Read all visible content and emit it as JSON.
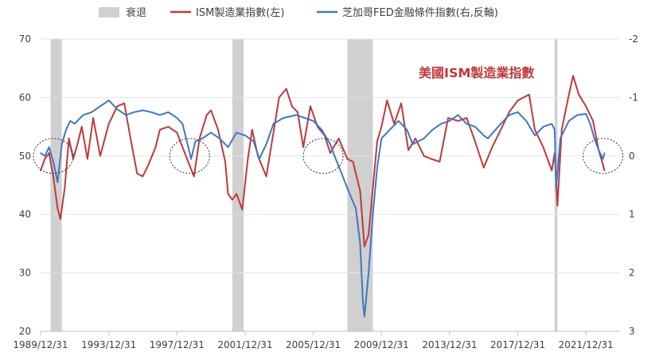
{
  "chart_data": {
    "type": "line",
    "legend": {
      "placement": "top",
      "recession": "衰退",
      "ism": "ISM製造業指數(左)",
      "fed": "芝加哥FED金融條件指數(右,反軸)"
    },
    "annotation": "美國ISM製造業指數",
    "colors": {
      "ism": "#c0393b",
      "fed": "#3f78c2",
      "recession": "#d0d0d0",
      "text": "#404040",
      "annotation": "#c0393b"
    },
    "x_range": [
      "1989-12-31",
      "2023-12-31"
    ],
    "x_ticks": [
      "1989/12/31",
      "1993/12/31",
      "1997/12/31",
      "2001/12/31",
      "2005/12/31",
      "2009/12/31",
      "2013/12/31",
      "2017/12/31",
      "2021/12/31"
    ],
    "y_left": {
      "range": [
        20,
        70
      ],
      "ticks": [
        20,
        30,
        40,
        50,
        60,
        70
      ]
    },
    "y_right": {
      "range": [
        -2,
        3
      ],
      "inverted": true,
      "ticks": [
        -2,
        -1,
        0,
        1,
        2,
        3
      ]
    },
    "recessions": [
      {
        "start": "1990-07-31",
        "end": "1991-03-31"
      },
      {
        "start": "2001-03-31",
        "end": "2001-11-30"
      },
      {
        "start": "2007-12-31",
        "end": "2009-06-30"
      },
      {
        "start": "2020-02-29",
        "end": "2020-04-30"
      }
    ],
    "highlight_circles": [
      {
        "date": "1990-09-30",
        "value": 50
      },
      {
        "date": "1998-09-30",
        "value": 50
      },
      {
        "date": "2006-07-31",
        "value": 50
      },
      {
        "date": "2022-12-31",
        "value": 50
      }
    ],
    "series": [
      {
        "name": "ISM製造業指數(左)",
        "axis": "left",
        "points": [
          [
            "1989-12-31",
            47.5
          ],
          [
            "1990-03-31",
            49.5
          ],
          [
            "1990-06-30",
            50.5
          ],
          [
            "1990-09-30",
            46.5
          ],
          [
            "1990-12-31",
            41.0
          ],
          [
            "1991-02-28",
            39.2
          ],
          [
            "1991-05-31",
            44.5
          ],
          [
            "1991-08-31",
            53.0
          ],
          [
            "1991-11-30",
            49.5
          ],
          [
            "1992-02-29",
            52.0
          ],
          [
            "1992-05-31",
            55.0
          ],
          [
            "1992-09-30",
            49.5
          ],
          [
            "1993-01-31",
            56.5
          ],
          [
            "1993-06-30",
            50.0
          ],
          [
            "1993-12-31",
            55.5
          ],
          [
            "1994-06-30",
            58.5
          ],
          [
            "1994-11-30",
            59.0
          ],
          [
            "1995-03-31",
            53.5
          ],
          [
            "1995-08-31",
            47.0
          ],
          [
            "1995-12-31",
            46.5
          ],
          [
            "1996-04-30",
            48.5
          ],
          [
            "1996-09-30",
            51.5
          ],
          [
            "1996-12-31",
            54.5
          ],
          [
            "1997-06-30",
            55.0
          ],
          [
            "1997-12-31",
            54.0
          ],
          [
            "1998-04-30",
            51.5
          ],
          [
            "1998-08-31",
            49.0
          ],
          [
            "1998-12-31",
            46.5
          ],
          [
            "1999-04-30",
            53.0
          ],
          [
            "1999-09-30",
            57.0
          ],
          [
            "1999-12-31",
            57.8
          ],
          [
            "2000-05-31",
            54.5
          ],
          [
            "2000-10-31",
            49.0
          ],
          [
            "2000-12-31",
            43.5
          ],
          [
            "2001-03-31",
            42.5
          ],
          [
            "2001-06-30",
            43.5
          ],
          [
            "2001-10-31",
            40.8
          ],
          [
            "2002-02-28",
            49.5
          ],
          [
            "2002-05-31",
            54.5
          ],
          [
            "2002-09-30",
            50.0
          ],
          [
            "2003-03-31",
            46.5
          ],
          [
            "2003-08-31",
            54.0
          ],
          [
            "2003-12-31",
            60.0
          ],
          [
            "2004-05-31",
            61.5
          ],
          [
            "2004-09-30",
            58.5
          ],
          [
            "2005-01-31",
            57.5
          ],
          [
            "2005-05-31",
            51.5
          ],
          [
            "2005-10-31",
            58.5
          ],
          [
            "2006-03-31",
            55.0
          ],
          [
            "2006-08-31",
            53.5
          ],
          [
            "2006-12-31",
            50.5
          ],
          [
            "2007-06-30",
            53.0
          ],
          [
            "2007-12-31",
            49.5
          ],
          [
            "2008-04-30",
            49.0
          ],
          [
            "2008-09-30",
            44.0
          ],
          [
            "2008-12-31",
            34.5
          ],
          [
            "2009-03-31",
            36.5
          ],
          [
            "2009-06-30",
            44.5
          ],
          [
            "2009-09-30",
            52.5
          ],
          [
            "2009-12-31",
            55.0
          ],
          [
            "2010-04-30",
            59.5
          ],
          [
            "2010-09-30",
            55.5
          ],
          [
            "2011-02-28",
            59.0
          ],
          [
            "2011-07-31",
            51.0
          ],
          [
            "2011-12-31",
            53.0
          ],
          [
            "2012-06-30",
            50.0
          ],
          [
            "2012-11-30",
            49.5
          ],
          [
            "2013-05-31",
            49.0
          ],
          [
            "2013-11-30",
            56.5
          ],
          [
            "2014-06-30",
            56.0
          ],
          [
            "2014-12-31",
            56.5
          ],
          [
            "2015-06-30",
            52.5
          ],
          [
            "2015-12-31",
            48.0
          ],
          [
            "2016-06-30",
            51.5
          ],
          [
            "2016-12-31",
            54.5
          ],
          [
            "2017-06-30",
            57.5
          ],
          [
            "2017-12-31",
            59.5
          ],
          [
            "2018-08-31",
            60.5
          ],
          [
            "2018-12-31",
            54.5
          ],
          [
            "2019-06-30",
            51.5
          ],
          [
            "2019-12-31",
            47.5
          ],
          [
            "2020-02-29",
            50.5
          ],
          [
            "2020-04-30",
            41.5
          ],
          [
            "2020-07-31",
            54.5
          ],
          [
            "2020-12-31",
            60.5
          ],
          [
            "2021-03-31",
            63.7
          ],
          [
            "2021-07-31",
            60.5
          ],
          [
            "2021-12-31",
            58.5
          ],
          [
            "2022-05-31",
            56.0
          ],
          [
            "2022-09-30",
            51.0
          ],
          [
            "2022-12-31",
            48.5
          ],
          [
            "2023-01-31",
            47.5
          ]
        ]
      },
      {
        "name": "芝加哥FED金融條件指數(右,反軸)",
        "axis": "right",
        "points": [
          [
            "1989-12-31",
            -0.05
          ],
          [
            "1990-03-31",
            0.0
          ],
          [
            "1990-06-30",
            -0.15
          ],
          [
            "1990-09-30",
            0.1
          ],
          [
            "1990-12-31",
            0.45
          ],
          [
            "1991-03-31",
            -0.2
          ],
          [
            "1991-06-30",
            -0.45
          ],
          [
            "1991-09-30",
            -0.6
          ],
          [
            "1991-12-31",
            -0.55
          ],
          [
            "1992-06-30",
            -0.7
          ],
          [
            "1992-12-31",
            -0.75
          ],
          [
            "1993-06-30",
            -0.85
          ],
          [
            "1993-12-31",
            -0.95
          ],
          [
            "1994-06-30",
            -0.8
          ],
          [
            "1994-12-31",
            -0.7
          ],
          [
            "1995-06-30",
            -0.75
          ],
          [
            "1995-12-31",
            -0.78
          ],
          [
            "1996-06-30",
            -0.75
          ],
          [
            "1996-12-31",
            -0.7
          ],
          [
            "1997-06-30",
            -0.75
          ],
          [
            "1997-12-31",
            -0.65
          ],
          [
            "1998-04-30",
            -0.55
          ],
          [
            "1998-08-31",
            -0.15
          ],
          [
            "1998-10-31",
            0.05
          ],
          [
            "1999-01-31",
            -0.25
          ],
          [
            "1999-06-30",
            -0.3
          ],
          [
            "1999-12-31",
            -0.4
          ],
          [
            "2000-06-30",
            -0.3
          ],
          [
            "2000-12-31",
            -0.15
          ],
          [
            "2001-06-30",
            -0.4
          ],
          [
            "2001-12-31",
            -0.35
          ],
          [
            "2002-06-30",
            -0.25
          ],
          [
            "2002-10-31",
            0.05
          ],
          [
            "2003-03-31",
            -0.2
          ],
          [
            "2003-08-31",
            -0.55
          ],
          [
            "2004-03-31",
            -0.65
          ],
          [
            "2004-12-31",
            -0.7
          ],
          [
            "2005-06-30",
            -0.65
          ],
          [
            "2005-12-31",
            -0.6
          ],
          [
            "2006-06-30",
            -0.45
          ],
          [
            "2006-12-31",
            -0.2
          ],
          [
            "2007-03-31",
            0.0
          ],
          [
            "2007-08-31",
            0.3
          ],
          [
            "2007-12-31",
            0.55
          ],
          [
            "2008-06-30",
            0.9
          ],
          [
            "2008-09-30",
            1.5
          ],
          [
            "2008-11-30",
            2.5
          ],
          [
            "2008-12-31",
            2.75
          ],
          [
            "2009-03-31",
            2.0
          ],
          [
            "2009-06-30",
            1.0
          ],
          [
            "2009-09-30",
            0.2
          ],
          [
            "2009-12-31",
            -0.3
          ],
          [
            "2010-06-30",
            -0.45
          ],
          [
            "2010-12-31",
            -0.6
          ],
          [
            "2011-06-30",
            -0.45
          ],
          [
            "2011-10-31",
            -0.2
          ],
          [
            "2012-06-30",
            -0.3
          ],
          [
            "2012-12-31",
            -0.45
          ],
          [
            "2013-06-30",
            -0.55
          ],
          [
            "2013-12-31",
            -0.6
          ],
          [
            "2014-06-30",
            -0.7
          ],
          [
            "2014-12-31",
            -0.55
          ],
          [
            "2015-06-30",
            -0.5
          ],
          [
            "2015-12-31",
            -0.35
          ],
          [
            "2016-03-31",
            -0.3
          ],
          [
            "2016-12-31",
            -0.55
          ],
          [
            "2017-06-30",
            -0.7
          ],
          [
            "2017-12-31",
            -0.75
          ],
          [
            "2018-06-30",
            -0.6
          ],
          [
            "2018-12-31",
            -0.35
          ],
          [
            "2019-06-30",
            -0.5
          ],
          [
            "2019-12-31",
            -0.55
          ],
          [
            "2020-02-29",
            -0.45
          ],
          [
            "2020-03-31",
            0.55
          ],
          [
            "2020-06-30",
            -0.3
          ],
          [
            "2020-12-31",
            -0.6
          ],
          [
            "2021-06-30",
            -0.7
          ],
          [
            "2021-12-31",
            -0.72
          ],
          [
            "2022-03-31",
            -0.55
          ],
          [
            "2022-06-30",
            -0.3
          ],
          [
            "2022-09-30",
            -0.1
          ],
          [
            "2022-12-31",
            0.05
          ],
          [
            "2023-01-31",
            -0.05
          ]
        ]
      }
    ]
  }
}
